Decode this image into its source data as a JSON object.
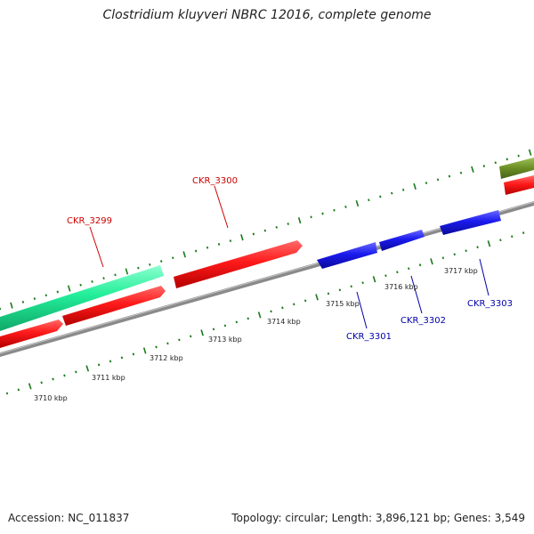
{
  "title": "Clostridium kluyveri NBRC 12016, complete genome",
  "footer": {
    "accession": "Accession: NC_011837",
    "summary": "Topology: circular; Length: 3,896,121 bp; Genes: 3,549"
  },
  "colors": {
    "forward_gene": "#ff1a1a",
    "reverse_gene": "#1a1aee",
    "highlight_gene": "#22ee99",
    "olive_gene": "#6b8e23",
    "backbone": "#888888",
    "tick": "#1a7a1a",
    "forward_label": "#cc0000",
    "reverse_label": "#0000aa"
  },
  "scale_ticks": [
    {
      "label": "3710 kbp",
      "kbp": 3710
    },
    {
      "label": "3711 kbp",
      "kbp": 3711
    },
    {
      "label": "3712 kbp",
      "kbp": 3712
    },
    {
      "label": "3713 kbp",
      "kbp": 3713
    },
    {
      "label": "3714 kbp",
      "kbp": 3714
    },
    {
      "label": "3715 kbp",
      "kbp": 3715
    },
    {
      "label": "3716 kbp",
      "kbp": 3716
    },
    {
      "label": "3717 kbp",
      "kbp": 3717
    }
  ],
  "gene_labels": [
    {
      "id": "CKR_3299",
      "strand": "forward"
    },
    {
      "id": "CKR_3300",
      "strand": "forward"
    },
    {
      "id": "CKR_3301",
      "strand": "reverse"
    },
    {
      "id": "CKR_3302",
      "strand": "reverse"
    },
    {
      "id": "CKR_3303",
      "strand": "reverse"
    }
  ]
}
